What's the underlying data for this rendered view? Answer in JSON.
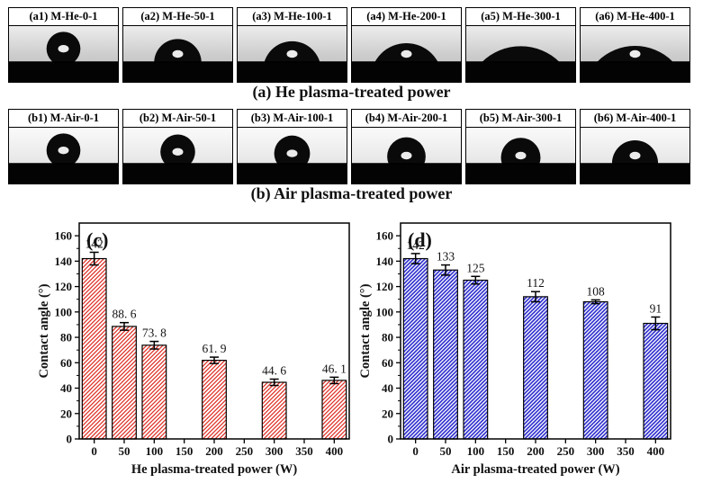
{
  "figure": {
    "rows": [
      {
        "id": "a",
        "caption": "(a) He plasma-treated power",
        "panels": [
          {
            "label": "(a1) M-He-0-1",
            "contact_angle": 142,
            "highlight": true
          },
          {
            "label": "(a2) M-He-50-1",
            "contact_angle": 88.6,
            "highlight": true
          },
          {
            "label": "(a3) M-He-100-1",
            "contact_angle": 73.8,
            "highlight": true
          },
          {
            "label": "(a4) M-He-200-1",
            "contact_angle": 61.9,
            "highlight": true
          },
          {
            "label": "(a5) M-He-300-1",
            "contact_angle": 44.6,
            "highlight": false
          },
          {
            "label": "(a6) M-He-400-1",
            "contact_angle": 46.1,
            "highlight": true
          }
        ]
      },
      {
        "id": "b",
        "caption": "(b) Air plasma-treated power",
        "panels": [
          {
            "label": "(b1) M-Air-0-1",
            "contact_angle": 142,
            "highlight": true
          },
          {
            "label": "(b2) M-Air-50-1",
            "contact_angle": 133,
            "highlight": true
          },
          {
            "label": "(b3) M-Air-100-1",
            "contact_angle": 125,
            "highlight": true
          },
          {
            "label": "(b4) M-Air-200-1",
            "contact_angle": 112,
            "highlight": true
          },
          {
            "label": "(b5) M-Air-300-1",
            "contact_angle": 108,
            "highlight": true
          },
          {
            "label": "(b6) M-Air-400-1",
            "contact_angle": 91,
            "highlight": true
          }
        ]
      }
    ]
  },
  "chart_data": [
    {
      "id": "c",
      "type": "bar",
      "panel_tag": "(c)",
      "title": "",
      "categories": [
        0,
        50,
        100,
        200,
        300,
        400
      ],
      "values": [
        142,
        88.6,
        73.8,
        61.9,
        44.6,
        46.1
      ],
      "errors": [
        5,
        3,
        3,
        2.5,
        2.5,
        2.5
      ],
      "value_labels": [
        "142",
        "88. 6",
        "73. 8",
        "61. 9",
        "44. 6",
        "46. 1"
      ],
      "xlabel": "He plasma-treated power (W)",
      "ylabel": "Contact angle (°)",
      "xlim": [
        -25,
        425
      ],
      "ylim": [
        0,
        170
      ],
      "x_ticks": [
        0,
        50,
        100,
        150,
        200,
        250,
        300,
        350,
        400
      ],
      "y_ticks": [
        0,
        20,
        40,
        60,
        80,
        100,
        120,
        140,
        160
      ],
      "y_minor_step": 10,
      "bar_width_units": 40,
      "bar_color": "#DE3126",
      "hatch": "diagonal-forward",
      "hatch_stroke": 1.25,
      "hatch_pitch": 4.5,
      "grid": false,
      "legend": null
    },
    {
      "id": "d",
      "type": "bar",
      "panel_tag": "(d)",
      "title": "",
      "categories": [
        0,
        50,
        100,
        200,
        300,
        400
      ],
      "values": [
        142,
        133,
        125,
        112,
        108,
        91
      ],
      "errors": [
        4,
        4,
        3,
        4,
        1.5,
        5
      ],
      "value_labels": [
        "142",
        "133",
        "125",
        "112",
        "108",
        "91"
      ],
      "xlabel": "Air plasma-treated power (W)",
      "ylabel": "Contact angle (°)",
      "xlim": [
        -25,
        425
      ],
      "ylim": [
        0,
        170
      ],
      "x_ticks": [
        0,
        50,
        100,
        150,
        200,
        250,
        300,
        350,
        400
      ],
      "y_ticks": [
        0,
        20,
        40,
        60,
        80,
        100,
        120,
        140,
        160
      ],
      "y_minor_step": 10,
      "bar_width_units": 40,
      "bar_color": "#2B2BCE",
      "hatch": "diagonal-forward",
      "hatch_stroke": 1.6,
      "hatch_pitch": 4.2,
      "grid": false,
      "legend": null
    }
  ]
}
